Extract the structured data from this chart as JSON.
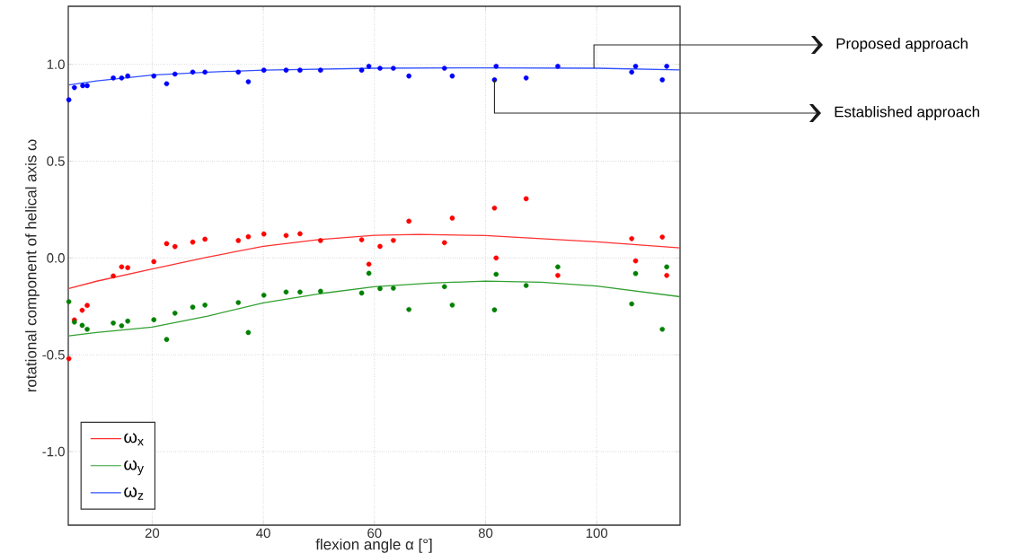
{
  "chart_data": {
    "type": "scatter",
    "xlabel": "flexion angle α [°]",
    "ylabel": "rotational component of helical axis ω",
    "xlim": [
      4.9,
      115
    ],
    "ylim": [
      -1.38,
      1.3
    ],
    "xticks": [
      20,
      40,
      60,
      80,
      100
    ],
    "yticks": [
      {
        "value": -1,
        "label": "-1.0"
      },
      -0.5,
      {
        "value": 0,
        "label": "0.0"
      },
      0.5,
      {
        "value": 1,
        "label": "1.0"
      }
    ],
    "grid": true,
    "legend": "bottom left",
    "annotations": [
      {
        "text": "Proposed approach",
        "x": 99.5,
        "y": 0.98
      },
      {
        "text": "Established approach",
        "x": 81.6,
        "y": 0.92
      }
    ],
    "series": [
      {
        "color": "#ff0000",
        "x": [
          5.0,
          6.0,
          7.4,
          8.3,
          13.0,
          14.5,
          15.6,
          20.3,
          22.6,
          24.1,
          27.3,
          29.5,
          35.5,
          37.3,
          40.1,
          44.1,
          46.6,
          50.3,
          57.7,
          59.0,
          61.0,
          63.4,
          66.2,
          72.6,
          74.0,
          81.6,
          81.9,
          87.3,
          93.0,
          106.3,
          107.0,
          111.8,
          112.6
        ],
        "values": [
          -0.52,
          -0.32,
          -0.27,
          -0.245,
          -0.093,
          -0.046,
          -0.05,
          -0.019,
          0.074,
          0.059,
          0.082,
          0.097,
          0.09,
          0.11,
          0.124,
          0.116,
          0.125,
          0.09,
          0.094,
          -0.032,
          0.06,
          0.091,
          0.19,
          0.079,
          0.206,
          0.258,
          0.0,
          0.306,
          -0.09,
          0.1,
          -0.015,
          0.108,
          -0.09
        ]
      },
      {
        "color": "#008000",
        "x": [
          5.0,
          6.0,
          7.4,
          8.3,
          13.0,
          14.5,
          15.6,
          20.3,
          22.6,
          24.1,
          27.3,
          29.5,
          35.5,
          37.3,
          40.1,
          44.1,
          46.6,
          50.3,
          57.7,
          59.0,
          61.0,
          63.4,
          66.2,
          72.6,
          74.0,
          81.6,
          81.9,
          87.3,
          93.0,
          106.3,
          107.0,
          111.8,
          112.6
        ],
        "values": [
          -0.226,
          -0.331,
          -0.348,
          -0.368,
          -0.336,
          -0.35,
          -0.326,
          -0.319,
          -0.421,
          -0.285,
          -0.254,
          -0.243,
          -0.23,
          -0.385,
          -0.192,
          -0.176,
          -0.176,
          -0.172,
          -0.181,
          -0.079,
          -0.158,
          -0.156,
          -0.266,
          -0.148,
          -0.243,
          -0.268,
          -0.084,
          -0.142,
          -0.046,
          -0.237,
          -0.08,
          -0.368,
          -0.046
        ]
      },
      {
        "color": "#0000ff",
        "x": [
          5.0,
          6.0,
          7.5,
          8.3,
          13.0,
          14.5,
          15.6,
          20.3,
          22.6,
          24.1,
          27.3,
          29.5,
          35.5,
          37.3,
          40.1,
          44.1,
          46.6,
          50.3,
          57.7,
          59.0,
          61.0,
          63.4,
          66.2,
          72.6,
          74.0,
          81.6,
          81.9,
          87.3,
          93.0,
          106.3,
          107.0,
          111.8,
          112.6
        ],
        "values": [
          0.817,
          0.88,
          0.89,
          0.89,
          0.93,
          0.93,
          0.94,
          0.94,
          0.9,
          0.95,
          0.96,
          0.96,
          0.96,
          0.91,
          0.97,
          0.97,
          0.97,
          0.97,
          0.97,
          0.99,
          0.98,
          0.98,
          0.94,
          0.98,
          0.94,
          0.92,
          0.99,
          0.93,
          0.99,
          0.96,
          0.99,
          0.92,
          0.99
        ]
      },
      {
        "type": "line",
        "name": "ω$_{x}$",
        "color": "#ff3030",
        "x": [
          5,
          10,
          20,
          30,
          40,
          50,
          60,
          68,
          80,
          90,
          100,
          115
        ],
        "values": [
          -0.158,
          -0.12,
          -0.057,
          0.005,
          0.06,
          0.095,
          0.117,
          0.122,
          0.116,
          0.1,
          0.083,
          0.052
        ]
      },
      {
        "type": "line",
        "name": "ω$_{y}$",
        "color": "#30a030",
        "x": [
          5,
          10,
          20,
          30,
          40,
          50,
          60,
          70,
          80,
          90,
          100,
          115
        ],
        "values": [
          -0.402,
          -0.385,
          -0.357,
          -0.3,
          -0.232,
          -0.185,
          -0.148,
          -0.13,
          -0.119,
          -0.125,
          -0.145,
          -0.2
        ]
      },
      {
        "type": "line",
        "name": "ω$_{z}$",
        "color": "#3050ff",
        "x": [
          5,
          10,
          20,
          30,
          40,
          60,
          80,
          100,
          115
        ],
        "values": [
          0.894,
          0.915,
          0.945,
          0.96,
          0.97,
          0.98,
          0.982,
          0.98,
          0.971
        ]
      }
    ]
  }
}
